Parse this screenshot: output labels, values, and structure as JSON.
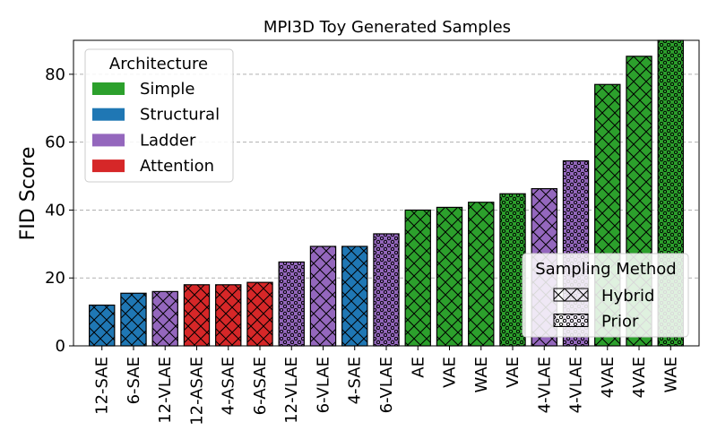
{
  "chart_data": {
    "type": "bar",
    "title": "MPI3D Toy Generated Samples",
    "xlabel": "",
    "ylabel": "FID Score",
    "ylim": [
      0,
      90
    ],
    "yticks": [
      0,
      20,
      40,
      60,
      80
    ],
    "grid": "y-dashed",
    "categories": [
      "12-SAE",
      "6-SAE",
      "12-VLAE",
      "12-ASAE",
      "4-ASAE",
      "6-ASAE",
      "12-VLAE",
      "6-VLAE",
      "4-SAE",
      "6-VLAE",
      "AE",
      "VAE",
      "WAE",
      "VAE",
      "4-VLAE",
      "4-VLAE",
      "4VAE",
      "4VAE",
      "WAE"
    ],
    "values": [
      12,
      15.5,
      16,
      18,
      18,
      18.7,
      24.7,
      29.3,
      29.3,
      33,
      40,
      40.8,
      42.3,
      44.8,
      46.3,
      54.5,
      77,
      85.3,
      90
    ],
    "architecture": [
      "Structural",
      "Structural",
      "Ladder",
      "Attention",
      "Attention",
      "Attention",
      "Ladder",
      "Ladder",
      "Structural",
      "Ladder",
      "Simple",
      "Simple",
      "Simple",
      "Simple",
      "Ladder",
      "Ladder",
      "Simple",
      "Simple",
      "Simple"
    ],
    "sampling": [
      "Hybrid",
      "Hybrid",
      "Hybrid",
      "Hybrid",
      "Hybrid",
      "Hybrid",
      "Prior",
      "Hybrid",
      "Hybrid",
      "Prior",
      "Hybrid",
      "Hybrid",
      "Hybrid",
      "Prior",
      "Hybrid",
      "Prior",
      "Hybrid",
      "Hybrid",
      "Prior"
    ],
    "legend_architecture": {
      "title": "Architecture",
      "placement": "upper-left",
      "entries": [
        {
          "label": "Simple",
          "color": "#2ca02c"
        },
        {
          "label": "Structural",
          "color": "#1f77b4"
        },
        {
          "label": "Ladder",
          "color": "#9467bd"
        },
        {
          "label": "Attention",
          "color": "#d62728"
        }
      ]
    },
    "legend_sampling": {
      "title": "Sampling Method",
      "placement": "lower-right",
      "entries": [
        {
          "label": "Hybrid",
          "hatch": "crosshatch"
        },
        {
          "label": "Prior",
          "hatch": "dots"
        }
      ]
    }
  }
}
